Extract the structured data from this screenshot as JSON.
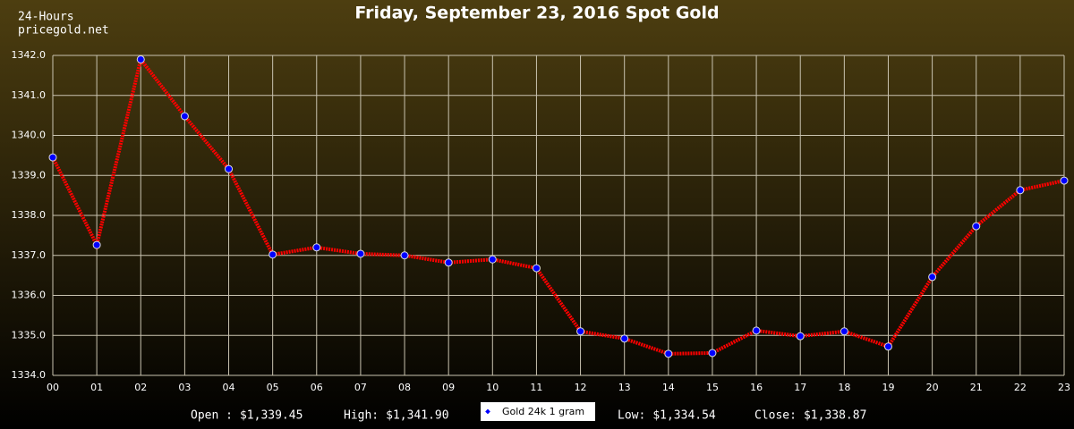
{
  "chart_data": {
    "type": "line",
    "title": "Friday, September 23, 2016 Spot Gold",
    "period": "24-Hours",
    "source": "pricegold.net",
    "categories": [
      "00",
      "01",
      "02",
      "03",
      "04",
      "05",
      "06",
      "07",
      "08",
      "09",
      "10",
      "11",
      "12",
      "13",
      "14",
      "15",
      "16",
      "17",
      "18",
      "19",
      "20",
      "21",
      "22",
      "23"
    ],
    "series": [
      {
        "name": "Gold 24k 1 gram",
        "color": "#ff0000",
        "marker_color": "#0000ff",
        "values": [
          1339.45,
          1337.26,
          1341.9,
          1340.48,
          1339.16,
          1337.02,
          1337.2,
          1337.04,
          1337.0,
          1336.82,
          1336.9,
          1336.68,
          1335.1,
          1334.92,
          1334.54,
          1334.56,
          1335.12,
          1334.98,
          1335.1,
          1334.72,
          1336.46,
          1337.73,
          1338.63,
          1338.87
        ]
      }
    ],
    "ylim": [
      1334,
      1342
    ],
    "yticks": [
      {
        "value": 1334,
        "label": "1334.0"
      },
      {
        "value": 1335,
        "label": "1335.0"
      },
      {
        "value": 1336,
        "label": "1336.0"
      },
      {
        "value": 1337,
        "label": "1337.0"
      },
      {
        "value": 1338,
        "label": "1338.0"
      },
      {
        "value": 1339,
        "label": "1339.0"
      },
      {
        "value": 1340,
        "label": "1340.0"
      },
      {
        "value": 1341,
        "label": "1341.0"
      },
      {
        "value": 1342,
        "label": "1342.0"
      }
    ],
    "grid": true,
    "stats": [
      {
        "label": "Open :",
        "text": "$1,339.45"
      },
      {
        "label": "High:",
        "text": "$1,341.90"
      },
      {
        "label": "Low:",
        "text": "$1,334.54"
      },
      {
        "label": "Close:",
        "text": "$1,338.87"
      }
    ]
  }
}
